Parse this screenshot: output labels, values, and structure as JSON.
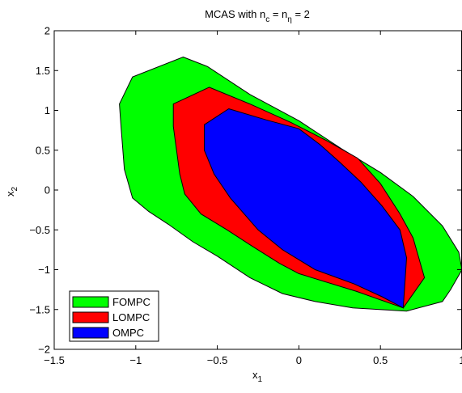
{
  "chart_data": {
    "type": "area",
    "title": "MCAS with n",
    "title_parts": {
      "sub_c": "c",
      "eq1": " = n",
      "sub_eta": "η",
      "eq2": " = 2"
    },
    "xlabel": "x",
    "xlabel_sub": "1",
    "ylabel": "x",
    "ylabel_sub": "2",
    "xlim": [
      -1.5,
      1
    ],
    "ylim": [
      -2,
      2
    ],
    "xticks": [
      -1.5,
      -1,
      -0.5,
      0,
      0.5,
      1
    ],
    "xtick_labels": [
      "−1.5",
      "−1",
      "−0.5",
      "0",
      "0.5",
      "1"
    ],
    "yticks": [
      -2,
      -1.5,
      -1,
      -0.5,
      0,
      0.5,
      1,
      1.5,
      2
    ],
    "ytick_labels": [
      "−2",
      "−1.5",
      "−1",
      "−0.5",
      "0",
      "0.5",
      "1",
      "1.5",
      "2"
    ],
    "grid": false,
    "legend_position": "bottom-left",
    "series": [
      {
        "name": "FOMPC",
        "color": "#00ff00",
        "points": [
          [
            -0.71,
            1.67
          ],
          [
            -0.56,
            1.55
          ],
          [
            -0.3,
            1.2
          ],
          [
            0.0,
            0.87
          ],
          [
            0.26,
            0.52
          ],
          [
            0.5,
            0.22
          ],
          [
            0.7,
            -0.08
          ],
          [
            0.88,
            -0.45
          ],
          [
            0.98,
            -0.78
          ],
          [
            1.0,
            -1.0
          ],
          [
            0.93,
            -1.25
          ],
          [
            0.88,
            -1.4
          ],
          [
            0.66,
            -1.52
          ],
          [
            0.33,
            -1.48
          ],
          [
            0.1,
            -1.4
          ],
          [
            -0.1,
            -1.3
          ],
          [
            -0.3,
            -1.1
          ],
          [
            -0.5,
            -0.83
          ],
          [
            -0.65,
            -0.65
          ],
          [
            -0.8,
            -0.43
          ],
          [
            -0.92,
            -0.27
          ],
          [
            -1.02,
            -0.1
          ],
          [
            -1.07,
            0.26
          ],
          [
            -1.09,
            0.78
          ],
          [
            -1.1,
            1.08
          ],
          [
            -1.02,
            1.42
          ]
        ]
      },
      {
        "name": "LOMPC",
        "color": "#ff0000",
        "points": [
          [
            -0.55,
            1.29
          ],
          [
            -0.3,
            1.08
          ],
          [
            -0.05,
            0.85
          ],
          [
            0.17,
            0.62
          ],
          [
            0.36,
            0.4
          ],
          [
            0.5,
            0.08
          ],
          [
            0.62,
            -0.3
          ],
          [
            0.7,
            -0.6
          ],
          [
            0.77,
            -1.1
          ],
          [
            0.64,
            -1.48
          ],
          [
            0.35,
            -1.27
          ],
          [
            0.0,
            -1.05
          ],
          [
            -0.12,
            -0.92
          ],
          [
            -0.29,
            -0.7
          ],
          [
            -0.44,
            -0.5
          ],
          [
            -0.6,
            -0.3
          ],
          [
            -0.7,
            -0.05
          ],
          [
            -0.73,
            0.2
          ],
          [
            -0.75,
            0.5
          ],
          [
            -0.77,
            0.8
          ],
          [
            -0.77,
            1.08
          ]
        ]
      },
      {
        "name": "OMPC",
        "color": "#0000ff",
        "points": [
          [
            -0.43,
            1.02
          ],
          [
            -0.2,
            0.88
          ],
          [
            0.0,
            0.77
          ],
          [
            0.13,
            0.57
          ],
          [
            0.25,
            0.35
          ],
          [
            0.38,
            0.1
          ],
          [
            0.51,
            -0.2
          ],
          [
            0.62,
            -0.5
          ],
          [
            0.66,
            -0.85
          ],
          [
            0.64,
            -1.48
          ],
          [
            0.51,
            -1.34
          ],
          [
            0.34,
            -1.18
          ],
          [
            0.1,
            -1.0
          ],
          [
            -0.1,
            -0.75
          ],
          [
            -0.25,
            -0.5
          ],
          [
            -0.42,
            -0.1
          ],
          [
            -0.52,
            0.2
          ],
          [
            -0.58,
            0.5
          ],
          [
            -0.58,
            0.82
          ]
        ]
      }
    ]
  }
}
